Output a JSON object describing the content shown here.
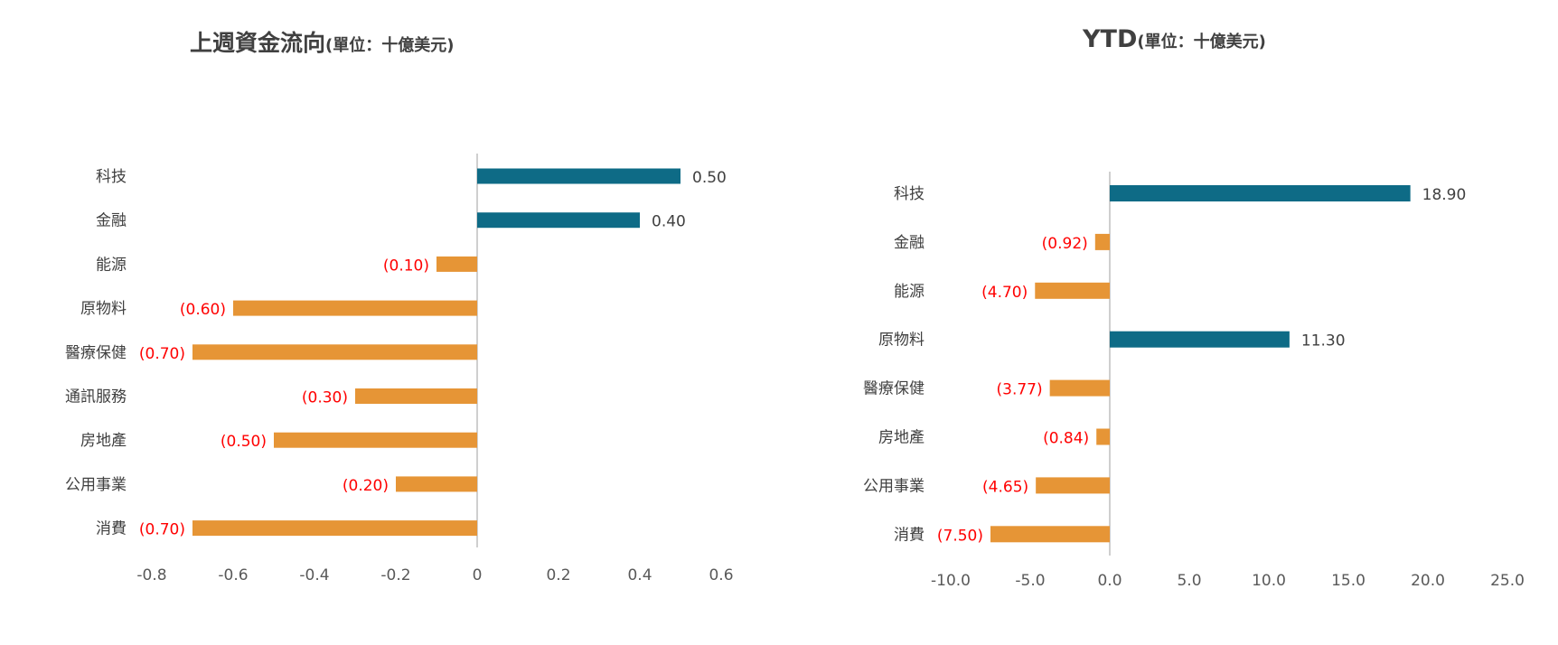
{
  "colors": {
    "positive": "#0e6b86",
    "negative": "#e69536",
    "neg_label": "#ff0000",
    "pos_label": "#404040",
    "axis": "#bfbfbf"
  },
  "chart_data": [
    {
      "type": "bar",
      "orientation": "horizontal",
      "title": "上週資金流向",
      "title_unit": "(單位：十億美元)",
      "categories": [
        "科技",
        "金融",
        "能源",
        "原物料",
        "醫療保健",
        "通訊服務",
        "房地產",
        "公用事業",
        "消費"
      ],
      "values": [
        0.5,
        0.4,
        -0.1,
        -0.6,
        -0.7,
        -0.3,
        -0.5,
        -0.2,
        -0.7
      ],
      "data_labels": [
        "0.50",
        "0.40",
        "(0.10)",
        "(0.60)",
        "(0.70)",
        "(0.30)",
        "(0.50)",
        "(0.20)",
        "(0.70)"
      ],
      "xlim": [
        -0.8,
        0.6
      ],
      "xticks": [
        -0.8,
        -0.6,
        -0.4,
        -0.2,
        0,
        0.2,
        0.4,
        0.6
      ],
      "xtick_labels": [
        "-0.8",
        "-0.6",
        "-0.4",
        "-0.2",
        "0",
        "0.2",
        "0.4",
        "0.6"
      ],
      "grid": false,
      "legend": "none"
    },
    {
      "type": "bar",
      "orientation": "horizontal",
      "title": "YTD",
      "title_unit": "(單位：十億美元)",
      "categories": [
        "科技",
        "金融",
        "能源",
        "原物料",
        "醫療保健",
        "房地產",
        "公用事業",
        "消費"
      ],
      "values": [
        18.9,
        -0.92,
        -4.7,
        11.3,
        -3.77,
        -0.84,
        -4.65,
        -7.5
      ],
      "data_labels": [
        "18.90",
        "(0.92)",
        "(4.70)",
        "11.30",
        "(3.77)",
        "(0.84)",
        "(4.65)",
        "(7.50)"
      ],
      "xlim": [
        -10,
        25
      ],
      "xticks": [
        -10,
        -5,
        0,
        5,
        10,
        15,
        20,
        25
      ],
      "xtick_labels": [
        "-10.0",
        "-5.0",
        "0.0",
        "5.0",
        "10.0",
        "15.0",
        "20.0",
        "25.0"
      ],
      "grid": false,
      "legend": "none"
    }
  ]
}
